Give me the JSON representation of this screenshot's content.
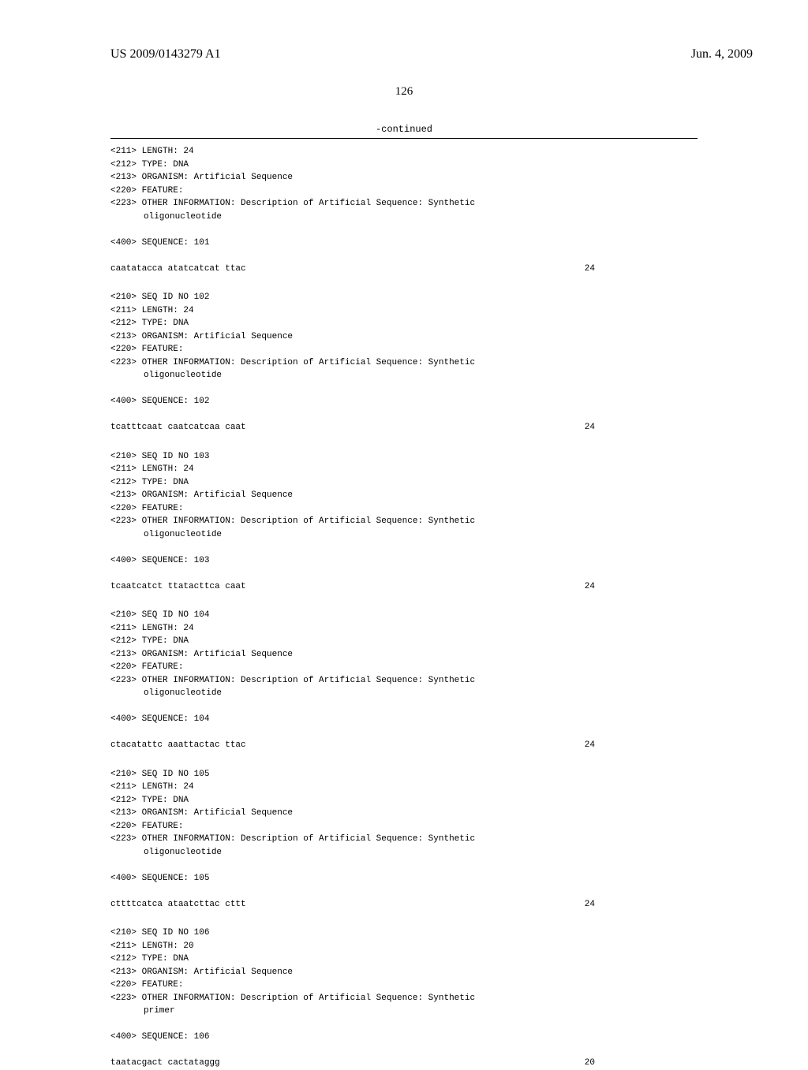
{
  "header": {
    "pub_number": "US 2009/0143279 A1",
    "date": "Jun. 4, 2009"
  },
  "page_number": "126",
  "continued_label": "-continued",
  "first_block": {
    "length": "<211> LENGTH: 24",
    "type": "<212> TYPE: DNA",
    "organism": "<213> ORGANISM: Artificial Sequence",
    "feature": "<220> FEATURE:",
    "other_info": "<223> OTHER INFORMATION: Description of Artificial Sequence: Synthetic",
    "other_info_cont": "oligonucleotide",
    "seq_label": "<400> SEQUENCE: 101",
    "sequence": "caatatacca atatcatcat ttac",
    "seq_len": "24"
  },
  "blocks": [
    {
      "seq_id": "<210> SEQ ID NO 102",
      "length": "<211> LENGTH: 24",
      "type": "<212> TYPE: DNA",
      "organism": "<213> ORGANISM: Artificial Sequence",
      "feature": "<220> FEATURE:",
      "other_info": "<223> OTHER INFORMATION: Description of Artificial Sequence: Synthetic",
      "other_info_cont": "oligonucleotide",
      "seq_label": "<400> SEQUENCE: 102",
      "sequence": "tcatttcaat caatcatcaa caat",
      "seq_len": "24"
    },
    {
      "seq_id": "<210> SEQ ID NO 103",
      "length": "<211> LENGTH: 24",
      "type": "<212> TYPE: DNA",
      "organism": "<213> ORGANISM: Artificial Sequence",
      "feature": "<220> FEATURE:",
      "other_info": "<223> OTHER INFORMATION: Description of Artificial Sequence: Synthetic",
      "other_info_cont": "oligonucleotide",
      "seq_label": "<400> SEQUENCE: 103",
      "sequence": "tcaatcatct ttatacttca caat",
      "seq_len": "24"
    },
    {
      "seq_id": "<210> SEQ ID NO 104",
      "length": "<211> LENGTH: 24",
      "type": "<212> TYPE: DNA",
      "organism": "<213> ORGANISM: Artificial Sequence",
      "feature": "<220> FEATURE:",
      "other_info": "<223> OTHER INFORMATION: Description of Artificial Sequence: Synthetic",
      "other_info_cont": "oligonucleotide",
      "seq_label": "<400> SEQUENCE: 104",
      "sequence": "ctacatattc aaattactac ttac",
      "seq_len": "24"
    },
    {
      "seq_id": "<210> SEQ ID NO 105",
      "length": "<211> LENGTH: 24",
      "type": "<212> TYPE: DNA",
      "organism": "<213> ORGANISM: Artificial Sequence",
      "feature": "<220> FEATURE:",
      "other_info": "<223> OTHER INFORMATION: Description of Artificial Sequence: Synthetic",
      "other_info_cont": "oligonucleotide",
      "seq_label": "<400> SEQUENCE: 105",
      "sequence": "cttttcatca ataatcttac cttt",
      "seq_len": "24"
    },
    {
      "seq_id": "<210> SEQ ID NO 106",
      "length": "<211> LENGTH: 20",
      "type": "<212> TYPE: DNA",
      "organism": "<213> ORGANISM: Artificial Sequence",
      "feature": "<220> FEATURE:",
      "other_info": "<223> OTHER INFORMATION: Description of Artificial Sequence: Synthetic",
      "other_info_cont": "primer",
      "seq_label": "<400> SEQUENCE: 106",
      "sequence": "taatacgact cactataggg",
      "seq_len": "20"
    }
  ]
}
